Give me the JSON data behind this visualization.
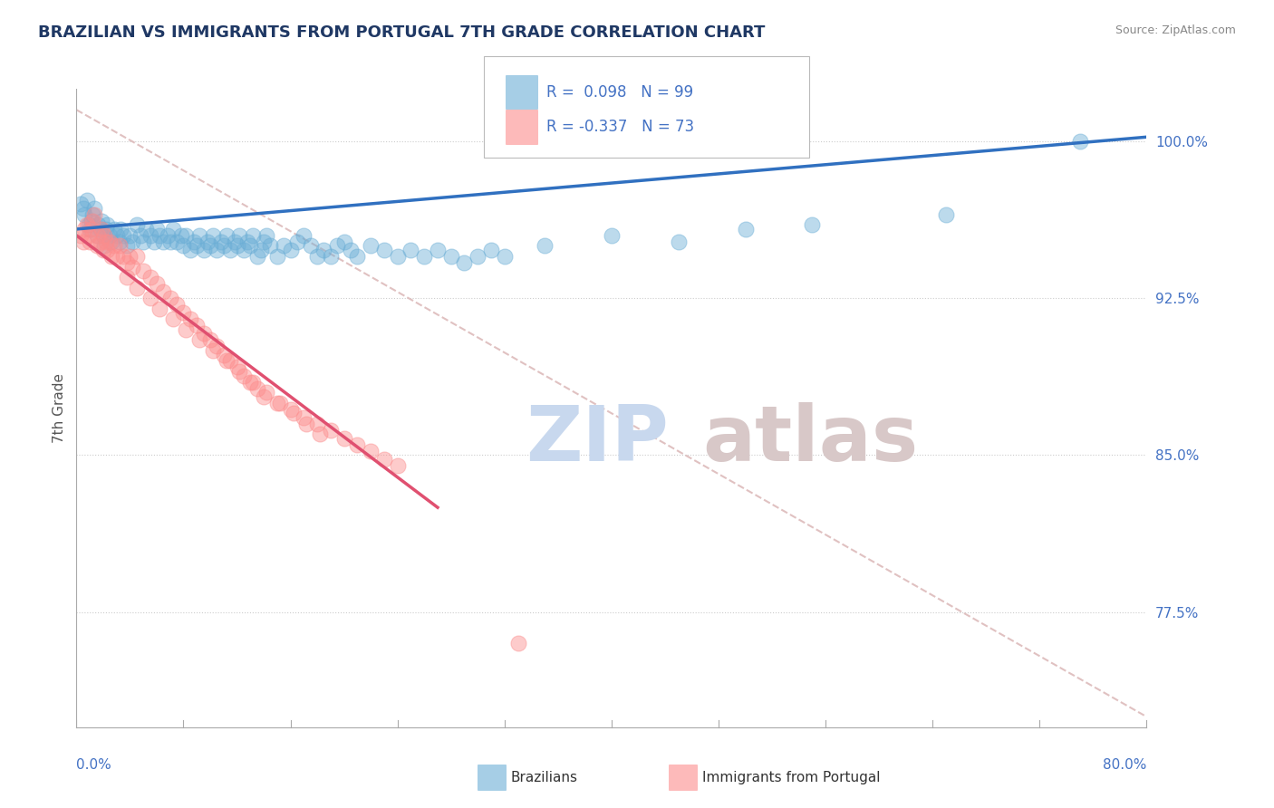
{
  "title": "BRAZILIAN VS IMMIGRANTS FROM PORTUGAL 7TH GRADE CORRELATION CHART",
  "source": "Source: ZipAtlas.com",
  "ylabel": "7th Grade",
  "xmin": 0.0,
  "xmax": 80.0,
  "ymin": 72.0,
  "ymax": 102.5,
  "r_blue": 0.098,
  "n_blue": 99,
  "r_pink": -0.337,
  "n_pink": 73,
  "blue_color": "#6BAED6",
  "pink_color": "#FC8D8D",
  "trend_blue": "#3070C0",
  "trend_pink": "#E05070",
  "ref_line_color": "#DDBBBB",
  "title_color": "#1F3864",
  "axis_label_color": "#4472C4",
  "watermark_zip_color": "#C8D8EE",
  "watermark_atlas_color": "#D8C8C8",
  "legend_label_blue": "Brazilians",
  "legend_label_pink": "Immigrants from Portugal",
  "background_color": "#FFFFFF",
  "ytick_vals": [
    77.5,
    85.0,
    92.5,
    100.0
  ],
  "ytick_labels": [
    "77.5%",
    "85.0%",
    "92.5%",
    "100.0%"
  ],
  "blue_trend_x0": 0.0,
  "blue_trend_y0": 95.8,
  "blue_trend_x1": 80.0,
  "blue_trend_y1": 100.2,
  "pink_trend_x0": 0.0,
  "pink_trend_y0": 95.5,
  "pink_trend_x1": 27.0,
  "pink_trend_y1": 82.5,
  "ref_x0": 0.0,
  "ref_y0": 101.5,
  "ref_x1": 80.0,
  "ref_y1": 72.5,
  "blue_scatter_x": [
    0.3,
    0.5,
    0.6,
    0.8,
    0.9,
    1.0,
    1.1,
    1.2,
    1.3,
    1.5,
    1.6,
    1.8,
    1.9,
    2.0,
    2.1,
    2.2,
    2.3,
    2.5,
    2.6,
    2.8,
    3.0,
    3.2,
    3.3,
    3.5,
    3.8,
    4.0,
    4.2,
    4.5,
    4.8,
    5.0,
    5.2,
    5.5,
    5.8,
    6.0,
    6.2,
    6.5,
    6.8,
    7.0,
    7.2,
    7.5,
    7.8,
    8.0,
    8.2,
    8.5,
    8.8,
    9.0,
    9.2,
    9.5,
    9.8,
    10.0,
    10.2,
    10.5,
    10.8,
    11.0,
    11.2,
    11.5,
    11.8,
    12.0,
    12.2,
    12.5,
    12.8,
    13.0,
    13.2,
    13.5,
    13.8,
    14.0,
    14.2,
    14.5,
    15.0,
    15.5,
    16.0,
    16.5,
    17.0,
    17.5,
    18.0,
    18.5,
    19.0,
    19.5,
    20.0,
    20.5,
    21.0,
    22.0,
    23.0,
    24.0,
    25.0,
    26.0,
    27.0,
    28.0,
    29.0,
    30.0,
    31.0,
    32.0,
    35.0,
    40.0,
    45.0,
    50.0,
    55.0,
    65.0,
    75.0
  ],
  "blue_scatter_y": [
    97.0,
    96.8,
    96.5,
    97.2,
    96.0,
    95.8,
    96.2,
    96.5,
    96.8,
    95.5,
    96.0,
    95.8,
    96.2,
    95.5,
    95.0,
    95.8,
    96.0,
    95.5,
    95.2,
    95.8,
    95.5,
    95.2,
    95.8,
    95.5,
    95.0,
    95.5,
    95.2,
    96.0,
    95.5,
    95.2,
    95.8,
    95.5,
    95.2,
    95.8,
    95.5,
    95.2,
    95.5,
    95.2,
    95.8,
    95.2,
    95.5,
    95.0,
    95.5,
    94.8,
    95.2,
    95.0,
    95.5,
    94.8,
    95.2,
    95.0,
    95.5,
    94.8,
    95.2,
    95.0,
    95.5,
    94.8,
    95.2,
    95.0,
    95.5,
    94.8,
    95.2,
    95.0,
    95.5,
    94.5,
    94.8,
    95.2,
    95.5,
    95.0,
    94.5,
    95.0,
    94.8,
    95.2,
    95.5,
    95.0,
    94.5,
    94.8,
    94.5,
    95.0,
    95.2,
    94.8,
    94.5,
    95.0,
    94.8,
    94.5,
    94.8,
    94.5,
    94.8,
    94.5,
    94.2,
    94.5,
    94.8,
    94.5,
    95.0,
    95.5,
    95.2,
    95.8,
    96.0,
    96.5,
    100.0
  ],
  "pink_scatter_x": [
    0.3,
    0.5,
    0.6,
    0.8,
    0.9,
    1.0,
    1.1,
    1.2,
    1.3,
    1.5,
    1.6,
    1.8,
    1.9,
    2.0,
    2.1,
    2.2,
    2.3,
    2.5,
    2.6,
    2.8,
    3.0,
    3.2,
    3.5,
    3.8,
    4.0,
    4.2,
    4.5,
    5.0,
    5.5,
    6.0,
    6.5,
    7.0,
    7.5,
    8.0,
    8.5,
    9.0,
    9.5,
    10.0,
    10.5,
    11.0,
    11.5,
    12.0,
    12.5,
    13.0,
    13.5,
    14.0,
    15.0,
    16.0,
    17.0,
    18.0,
    19.0,
    20.0,
    21.0,
    22.0,
    23.0,
    24.0,
    3.8,
    4.5,
    5.5,
    6.2,
    7.2,
    8.2,
    9.2,
    10.2,
    11.2,
    12.2,
    13.2,
    14.2,
    15.2,
    16.2,
    17.2,
    18.2,
    33.0
  ],
  "pink_scatter_y": [
    95.5,
    95.2,
    95.8,
    96.0,
    95.5,
    95.2,
    95.8,
    96.2,
    96.5,
    95.0,
    95.5,
    95.2,
    95.8,
    94.8,
    95.5,
    95.2,
    94.8,
    95.2,
    94.5,
    95.0,
    94.5,
    95.0,
    94.5,
    94.2,
    94.5,
    94.0,
    94.5,
    93.8,
    93.5,
    93.2,
    92.8,
    92.5,
    92.2,
    91.8,
    91.5,
    91.2,
    90.8,
    90.5,
    90.2,
    89.8,
    89.5,
    89.2,
    88.8,
    88.5,
    88.2,
    87.8,
    87.5,
    87.2,
    86.8,
    86.5,
    86.2,
    85.8,
    85.5,
    85.2,
    84.8,
    84.5,
    93.5,
    93.0,
    92.5,
    92.0,
    91.5,
    91.0,
    90.5,
    90.0,
    89.5,
    89.0,
    88.5,
    88.0,
    87.5,
    87.0,
    86.5,
    86.0,
    76.0
  ]
}
